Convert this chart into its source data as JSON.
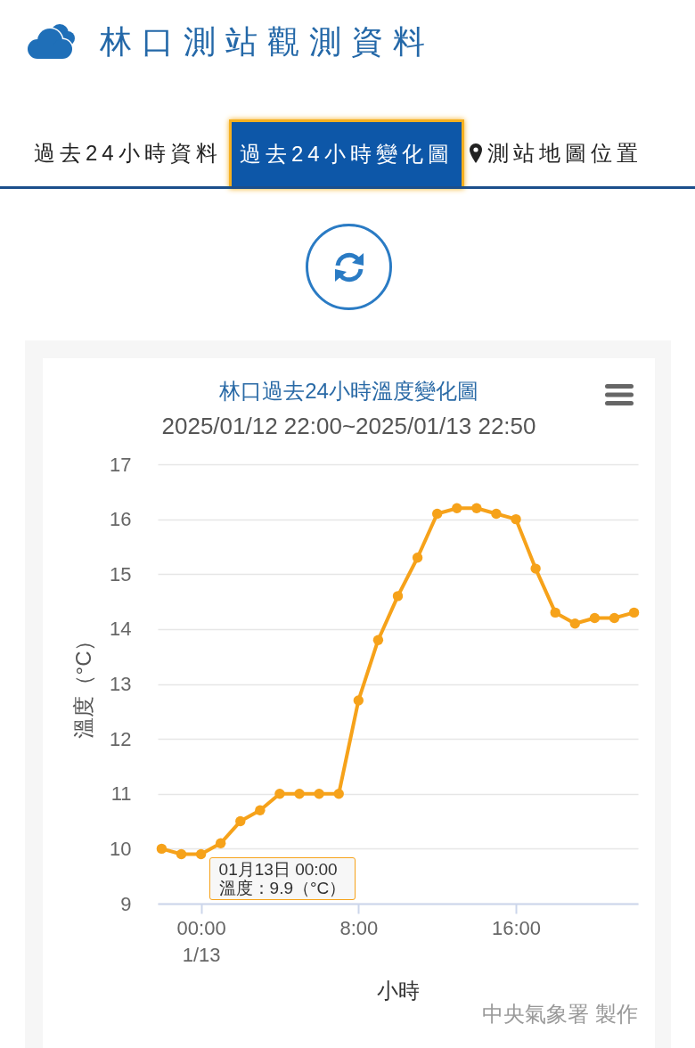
{
  "chart_data": {
    "type": "line",
    "title": "林口過去24小時溫度變化圖",
    "subtitle": "2025/01/12 22:00~2025/01/13 22:50",
    "xlabel": "小時",
    "ylabel": "溫度（°C）",
    "x": [
      -2,
      -1,
      0,
      1,
      2,
      3,
      4,
      5,
      6,
      7,
      8,
      9,
      10,
      11,
      12,
      13,
      14,
      15,
      16,
      17,
      18,
      19,
      20,
      21,
      22
    ],
    "xlim": [
      -2.2,
      22.2
    ],
    "xticks": [
      {
        "value": 0,
        "label": "00:00\n1/13"
      },
      {
        "value": 8,
        "label": "8:00"
      },
      {
        "value": 16,
        "label": "16:00"
      }
    ],
    "ylim": [
      9,
      17
    ],
    "yticks": [
      9,
      10,
      11,
      12,
      13,
      14,
      15,
      16,
      17
    ],
    "series": [
      {
        "color": "#f6a21a",
        "values": [
          10.0,
          9.9,
          9.9,
          10.1,
          10.5,
          10.7,
          11.0,
          11.0,
          11.0,
          11.0,
          12.7,
          13.8,
          14.6,
          15.3,
          16.1,
          16.2,
          16.2,
          16.1,
          16.0,
          15.1,
          14.3,
          14.1,
          14.2,
          14.2,
          14.3
        ]
      }
    ],
    "grid": "y",
    "marker": "circle",
    "line_style": "solid",
    "annotations": [
      "林口測站觀測資料",
      "過去24小時資料",
      "過去24小時變化圖",
      "測站地圖位置",
      {
        "text": "01月13日 00:00\n溫度：9.9（°C）",
        "x": 0,
        "y": 9.9
      },
      "中央氣象署 製作"
    ]
  }
}
